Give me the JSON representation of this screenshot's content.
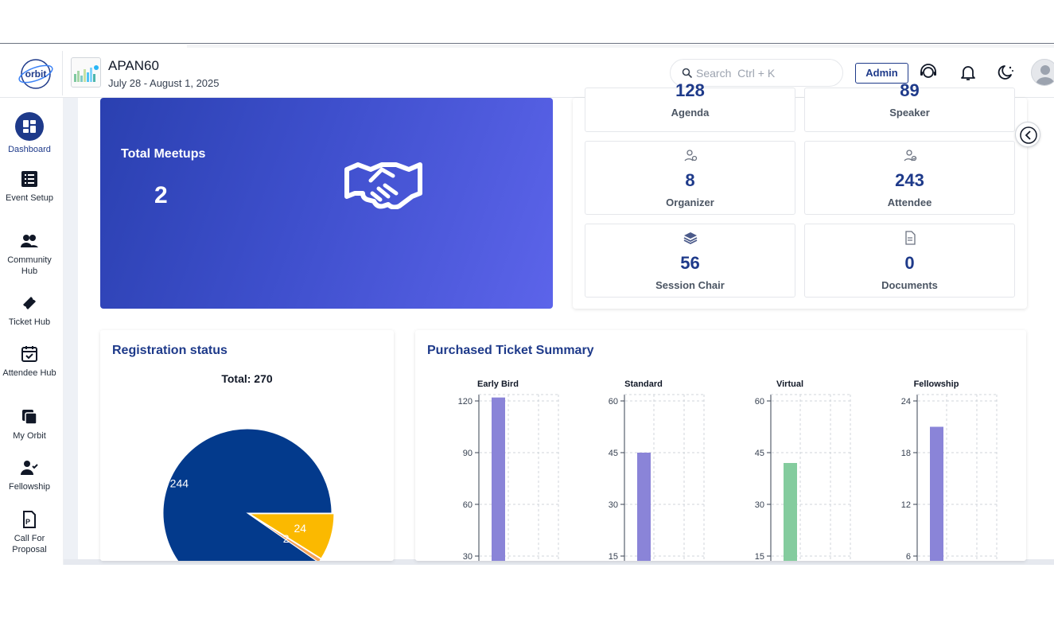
{
  "header": {
    "logo_text": "orbit",
    "event_name": "APAN60",
    "event_dates": "July 28 - August 1, 2025",
    "search_placeholder": "Search  Ctrl + K",
    "admin_label": "Admin"
  },
  "sidebar": {
    "items": [
      {
        "label": "Dashboard",
        "icon": "dashboard-icon",
        "active": true
      },
      {
        "label": "Event Setup",
        "icon": "list-icon"
      },
      {
        "label": "Community Hub",
        "icon": "people-icon"
      },
      {
        "label": "Ticket Hub",
        "icon": "ticket-icon"
      },
      {
        "label": "Attendee Hub",
        "icon": "calendar-check-icon"
      },
      {
        "label": "My Orbit",
        "icon": "layers-icon"
      },
      {
        "label": "Fellowship",
        "icon": "user-check-icon"
      },
      {
        "label": "Call For Proposal",
        "icon": "document-p-icon"
      }
    ]
  },
  "meetups": {
    "label": "Total Meetups",
    "value": "2"
  },
  "stats": [
    {
      "value": "128",
      "label": "Agenda"
    },
    {
      "value": "89",
      "label": "Speaker"
    },
    {
      "value": "8",
      "label": "Organizer"
    },
    {
      "value": "243",
      "label": "Attendee"
    },
    {
      "value": "56",
      "label": "Session Chair"
    },
    {
      "value": "0",
      "label": "Documents"
    }
  ],
  "registration": {
    "title": "Registration status",
    "total_label": "Total: 270"
  },
  "tickets": {
    "title": "Purchased Ticket Summary"
  },
  "colors": {
    "brand": "#1e3a8a",
    "pie_main": "#033a8c",
    "pie_secondary": "#fbb900",
    "bar_purple": "#8a84d8",
    "bar_green": "#84cc9e"
  },
  "chart_data": [
    {
      "type": "pie",
      "title": "Total: 270",
      "categories": [
        "",
        "",
        ""
      ],
      "values": [
        244,
        24,
        2
      ]
    },
    {
      "type": "bar",
      "title": "Early Bird",
      "categories": [
        ""
      ],
      "values": [
        122
      ],
      "ylim": [
        0,
        120
      ],
      "ticks": [
        "120",
        "90",
        "60",
        "30"
      ]
    },
    {
      "type": "bar",
      "title": "Standard",
      "categories": [
        ""
      ],
      "values": [
        45
      ],
      "ylim": [
        0,
        60
      ],
      "ticks": [
        "60",
        "45",
        "30",
        "15"
      ]
    },
    {
      "type": "bar",
      "title": "Virtual",
      "categories": [
        ""
      ],
      "values": [
        42
      ],
      "ylim": [
        0,
        60
      ],
      "ticks": [
        "60",
        "45",
        "30",
        "15"
      ]
    },
    {
      "type": "bar",
      "title": "Fellowship",
      "categories": [
        ""
      ],
      "values": [
        21
      ],
      "ylim": [
        0,
        24
      ],
      "ticks": [
        "24",
        "18",
        "12",
        "6"
      ]
    }
  ]
}
